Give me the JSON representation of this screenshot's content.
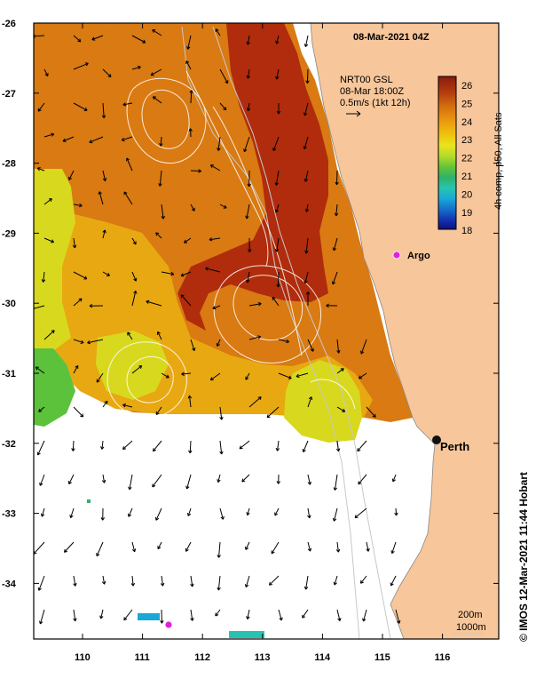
{
  "title": "08-Mar-2021 04Z",
  "currents": {
    "lines": [
      "NRT00 GSL",
      "08-Mar 18:00Z",
      "0.5m/s (1kt 12h)"
    ]
  },
  "colorbar": {
    "label": "4h comp, p50, All Sats",
    "ticks": [
      "26",
      "25",
      "24",
      "23",
      "22",
      "21",
      "20",
      "19",
      "18"
    ],
    "colors": [
      "#8b1a0a",
      "#b23a10",
      "#d4700f",
      "#e8950f",
      "#f0c20e",
      "#e9e41c",
      "#b5db2a",
      "#5cc23c",
      "#2fb26a",
      "#26c4b0",
      "#1aa8d6",
      "#1466c9",
      "#1428a8",
      "#0d1478"
    ]
  },
  "axes": {
    "y_ticks": [
      "-26",
      "-27",
      "-28",
      "-29",
      "-30",
      "-31",
      "-32",
      "-33",
      "-34"
    ],
    "x_ticks": [
      "110",
      "111",
      "112",
      "113",
      "114",
      "115",
      "116"
    ]
  },
  "markers": {
    "argo": "Argo",
    "perth": "Perth"
  },
  "contours_legend": [
    "200m",
    "1000m"
  ],
  "credit": "© IMOS 12-Mar-2021 11:44 Hobart",
  "colors": {
    "land": "#f7c69a",
    "hot": "#b02c0c",
    "warm": "#d97a12",
    "mild": "#e8a812",
    "cool": "#d8d91e",
    "green": "#5cc23c",
    "argo": "#e020e0"
  }
}
